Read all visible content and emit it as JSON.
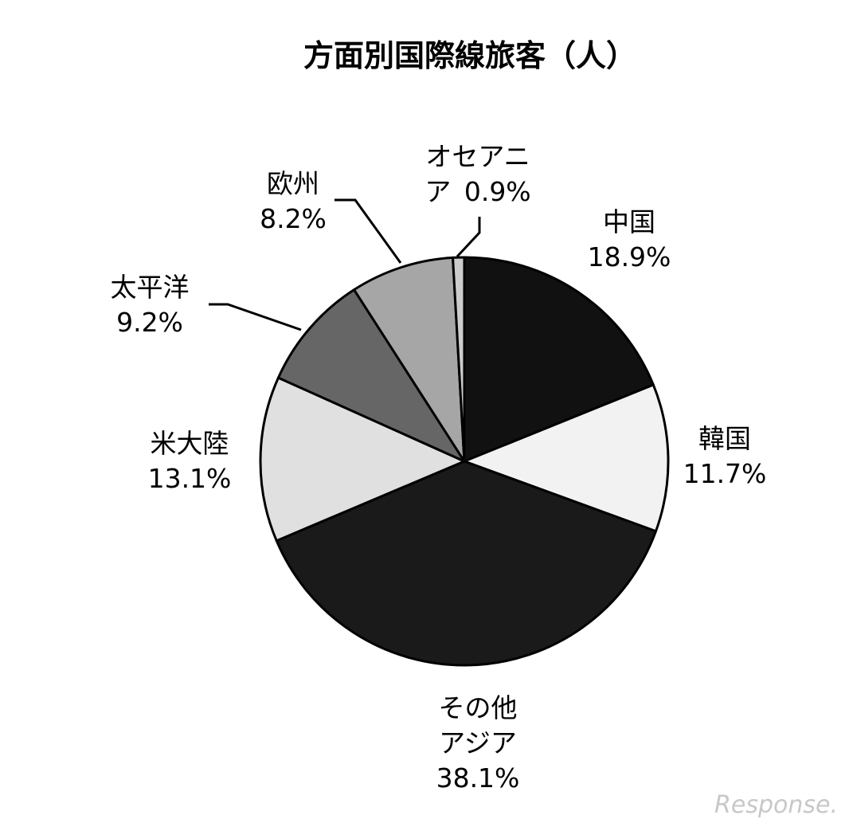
{
  "chart_data": {
    "type": "pie",
    "title": "方面別国際線旅客（人）",
    "slices": [
      {
        "label_lines": [
          "中国"
        ],
        "value_text": "18.9%",
        "value": 18.9,
        "color": "#111111"
      },
      {
        "label_lines": [
          "韓国"
        ],
        "value_text": "11.7%",
        "value": 11.7,
        "color": "#f2f2f2"
      },
      {
        "label_lines": [
          "その他",
          "アジア"
        ],
        "value_text": "38.1%",
        "value": 38.1,
        "color": "#1a1a1a"
      },
      {
        "label_lines": [
          "米大陸"
        ],
        "value_text": "13.1%",
        "value": 13.1,
        "color": "#e0e0e0"
      },
      {
        "label_lines": [
          "太平洋"
        ],
        "value_text": "9.2%",
        "value": 9.2,
        "color": "#666666"
      },
      {
        "label_lines": [
          "欧州"
        ],
        "value_text": "8.2%",
        "value": 8.2,
        "color": "#a6a6a6"
      },
      {
        "label_lines": [
          "オセアニ",
          "ア"
        ],
        "value_text": "0.9%",
        "value": 0.9,
        "color": "#cccccc"
      }
    ],
    "start_angle_deg": 0,
    "direction": "clockwise",
    "legend": "none"
  },
  "watermark": "Response."
}
